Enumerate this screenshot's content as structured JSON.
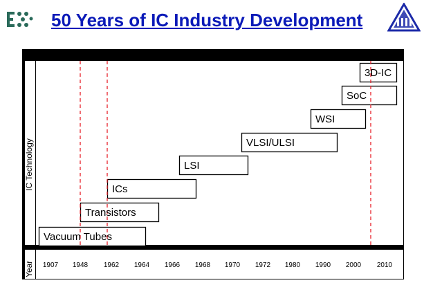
{
  "page": {
    "title": "50 Years of IC Industry Development"
  },
  "colors": {
    "title": "#0b1ab8",
    "frame": "#000000",
    "marker_line": "#e8202a",
    "logo_left": "#2a6a5a",
    "logo_right": "#1c2aa8"
  },
  "icons": {
    "left_logo": "ee-logo-icon",
    "right_logo": "ime-triangle-logo-icon"
  },
  "diagram": {
    "y_axis_label": "IC Technology",
    "x_axis_label": "Year",
    "years": [
      "1907",
      "1948",
      "1962",
      "1964",
      "1966",
      "1968",
      "1970",
      "1972",
      "1980",
      "1990",
      "2000",
      "2010"
    ],
    "marker_years": [
      "1948",
      "1962",
      "2005"
    ],
    "stages": [
      {
        "label": "Vacuum Tubes"
      },
      {
        "label": "Transistors"
      },
      {
        "label": "ICs"
      },
      {
        "label": "LSI"
      },
      {
        "label": "VLSI/ULSI"
      },
      {
        "label": "WSI"
      },
      {
        "label": "SoC"
      },
      {
        "label": "3D-IC"
      }
    ]
  }
}
